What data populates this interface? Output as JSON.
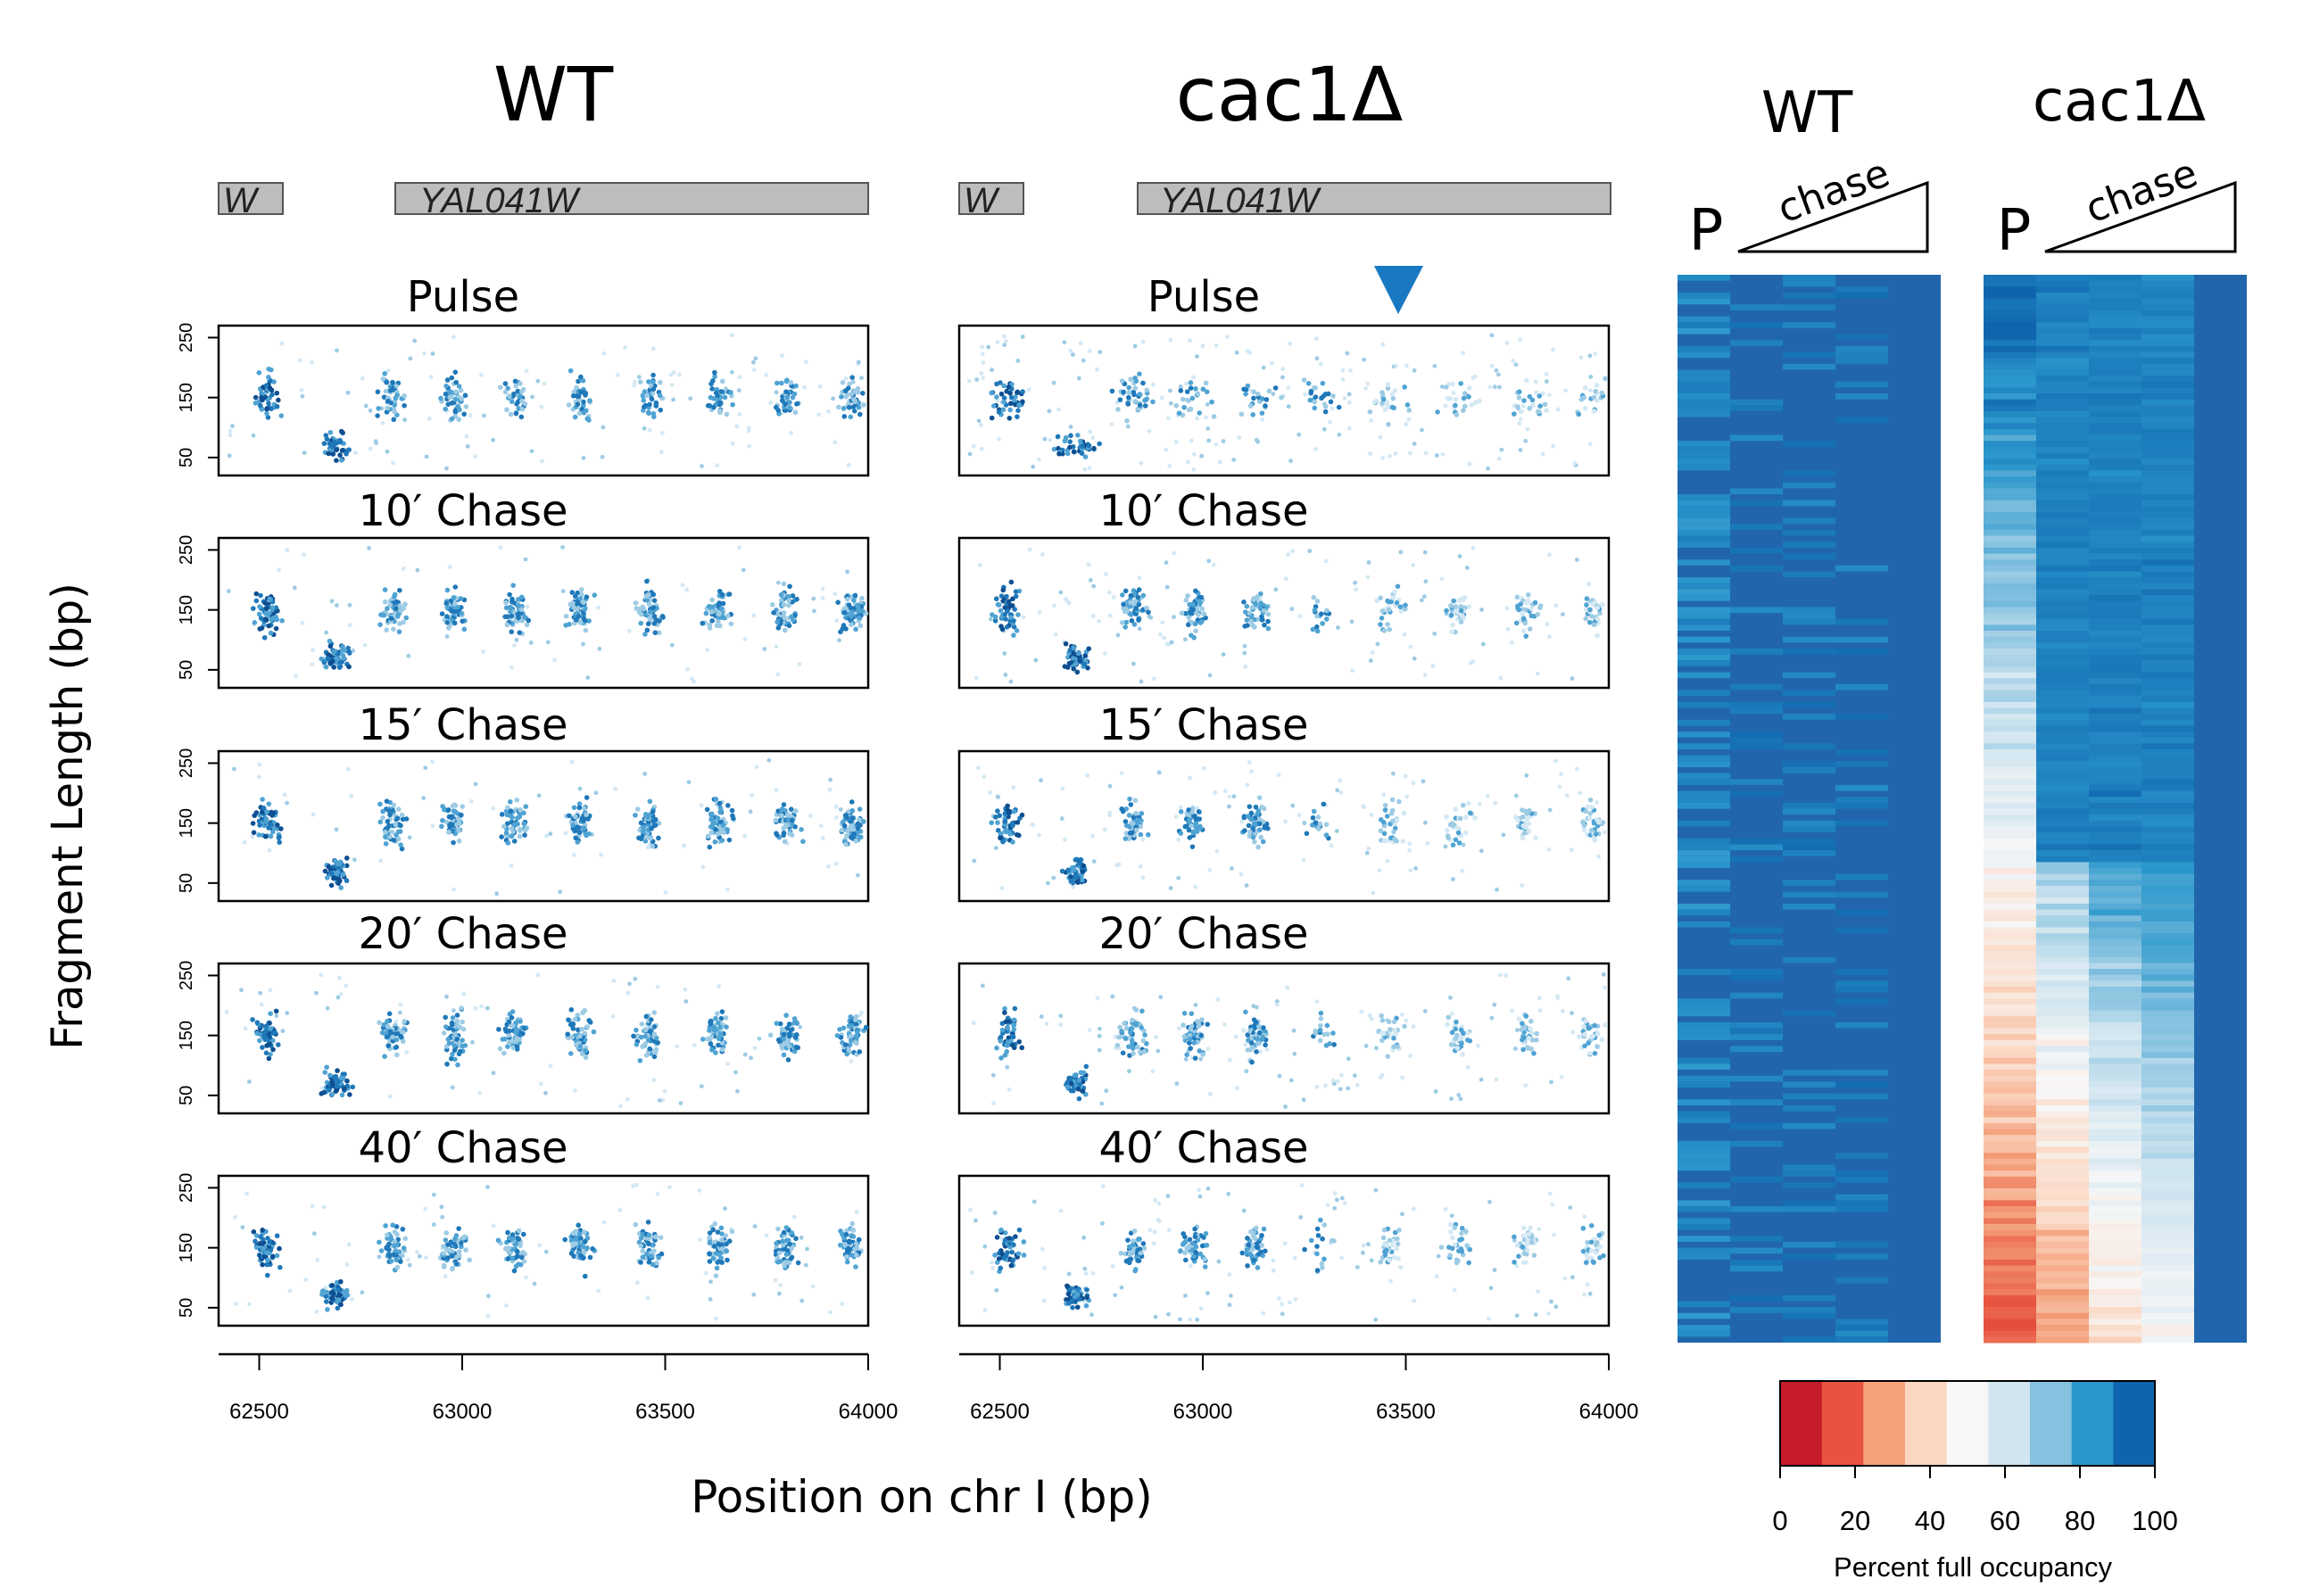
{
  "colors": {
    "blue_scale": [
      "#d4e8f4",
      "#9dcbe4",
      "#4fa3d3",
      "#1f78b9",
      "#0d4f91",
      "#08306b"
    ],
    "heatmap_blue": "#2166ac",
    "legend": [
      "#c51b2a",
      "#e7533f",
      "#f4a17c",
      "#fbd6c1",
      "#f7f7f7",
      "#d1e5f0",
      "#86c2e0",
      "#2a97cc",
      "#0f65ad"
    ],
    "marker": "#1878c2",
    "gene_box": "#bdbdbd"
  },
  "panels": {
    "wt_title": "WT",
    "cac_title": "cac1Δ",
    "gene_left": "W",
    "gene_right": "YAL041W",
    "ylabel": "Fragment Length (bp)",
    "xlabel": "Position on chr I (bp)"
  },
  "heatmap": {
    "wt_title": "WT",
    "cac_title": "cac1Δ",
    "pulse_label": "P",
    "chase_label": "chase"
  },
  "legend": {
    "title": "Percent full occupancy",
    "ticks": [
      "0",
      "20",
      "40",
      "60",
      "80",
      "100"
    ]
  },
  "chart_data": [
    {
      "type": "scatter",
      "title": "WT",
      "xlabel": "Position on chr I (bp)",
      "ylabel": "Fragment Length (bp)",
      "xlim": [
        62400,
        64000
      ],
      "ylim": [
        20,
        270
      ],
      "x_ticks": [
        "62500",
        "63000",
        "63500",
        "64000"
      ],
      "y_ticks": [
        "50",
        "150",
        "250"
      ],
      "rows": [
        "Pulse",
        "10′ Chase",
        "15′ Chase",
        "20′ Chase",
        "40′ Chase"
      ],
      "nucleosome_centers": [
        62520,
        62690,
        62830,
        62980,
        63130,
        63290,
        63460,
        63630,
        63800,
        63960
      ]
    },
    {
      "type": "scatter",
      "title": "cac1Δ",
      "xlabel": "Position on chr I (bp)",
      "ylabel": "Fragment Length (bp)",
      "xlim": [
        62400,
        64000
      ],
      "ylim": [
        20,
        270
      ],
      "x_ticks": [
        "62500",
        "63000",
        "63500",
        "64000"
      ],
      "y_ticks": [
        "50",
        "150",
        "250"
      ],
      "rows": [
        "Pulse",
        "10′ Chase",
        "15′ Chase",
        "20′ Chase",
        "40′ Chase"
      ],
      "nucleosome_centers": [
        62520,
        62690,
        62830,
        62980,
        63130,
        63290,
        63460,
        63630,
        63800,
        63960
      ]
    },
    {
      "type": "heatmap",
      "title": "WT",
      "columns": [
        "P",
        "chase",
        "chase",
        "chase",
        "chase"
      ]
    },
    {
      "type": "heatmap",
      "title": "cac1Δ",
      "columns": [
        "P",
        "chase",
        "chase",
        "chase",
        "chase"
      ]
    }
  ]
}
